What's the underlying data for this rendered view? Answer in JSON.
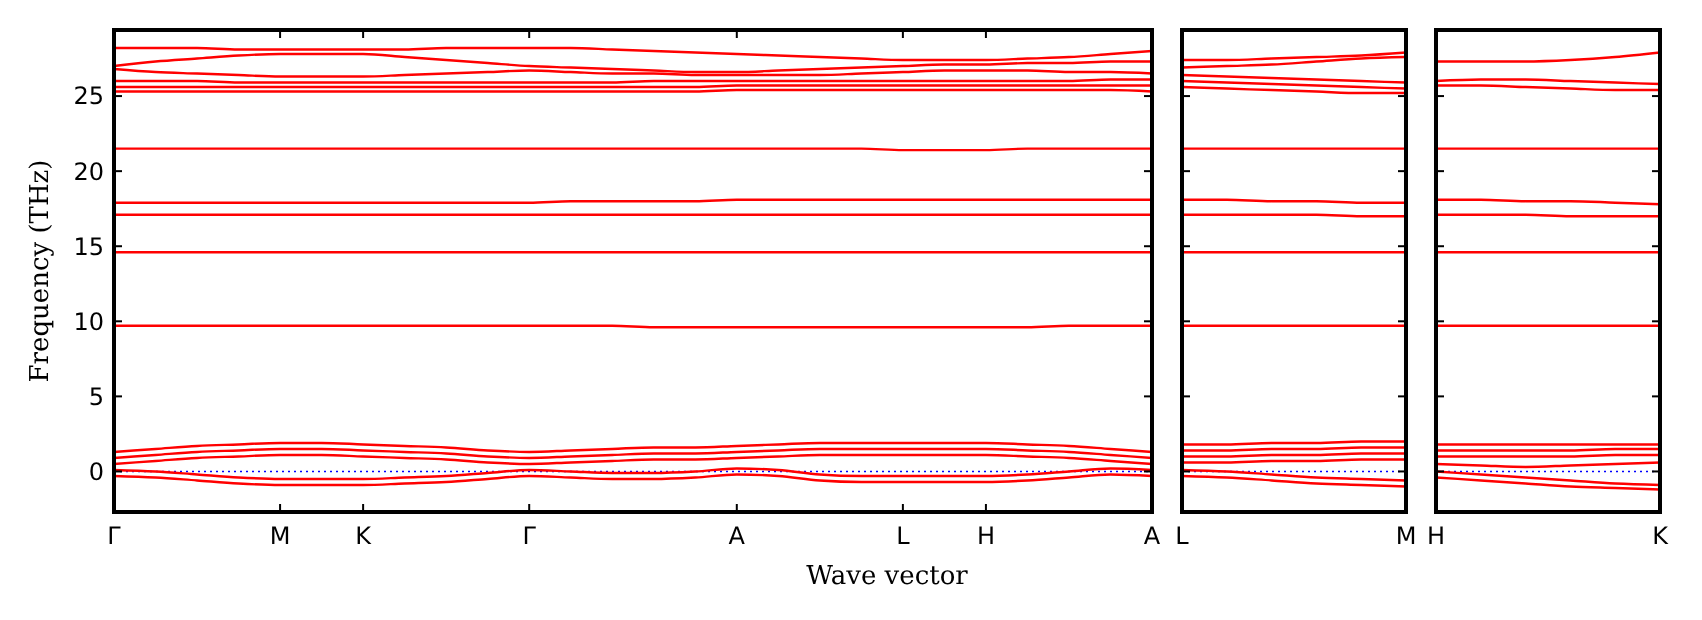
{
  "chart_data": [
    {
      "type": "line",
      "xlabel": "Wave vector",
      "ylabel": "Frequency (THz)",
      "categories": [
        "Γ",
        null,
        null,
        null,
        "M",
        null,
        "K",
        null,
        null,
        null,
        "Γ",
        null,
        null,
        null,
        null,
        "A",
        null,
        null,
        null,
        "L",
        null,
        "H",
        null,
        null,
        null,
        "A"
      ],
      "ylim": [
        -2.7,
        29.4
      ],
      "yticks": [
        0,
        5,
        10,
        15,
        20,
        25
      ],
      "ref_lines": [
        {
          "axis": "y",
          "value": 0,
          "color": "#0000ff",
          "line_style": "dotted"
        }
      ],
      "series": [
        {
          "color": "#ff0000",
          "values": [
            28.2,
            28.2,
            28.2,
            28.1,
            28.1,
            28.1,
            28.1,
            28.1,
            28.2,
            28.2,
            28.2,
            28.2,
            28.1,
            28.0,
            27.9,
            27.8,
            27.7,
            27.6,
            27.5,
            27.4,
            27.4,
            27.4,
            27.5,
            27.6,
            27.8,
            28.0
          ]
        },
        {
          "color": "#ff0000",
          "values": [
            27.0,
            27.3,
            27.5,
            27.7,
            27.8,
            27.8,
            27.8,
            27.6,
            27.4,
            27.2,
            27.0,
            26.9,
            26.8,
            26.7,
            26.6,
            26.6,
            26.7,
            26.8,
            26.9,
            27.0,
            27.1,
            27.1,
            27.2,
            27.2,
            27.3,
            27.3
          ]
        },
        {
          "color": "#ff0000",
          "values": [
            26.8,
            26.6,
            26.5,
            26.4,
            26.3,
            26.3,
            26.3,
            26.4,
            26.5,
            26.6,
            26.7,
            26.6,
            26.5,
            26.5,
            26.4,
            26.4,
            26.4,
            26.4,
            26.5,
            26.6,
            26.7,
            26.7,
            26.7,
            26.6,
            26.6,
            26.5
          ]
        },
        {
          "color": "#ff0000",
          "values": [
            26.0,
            26.0,
            26.0,
            25.9,
            25.9,
            25.9,
            25.9,
            25.9,
            25.9,
            25.9,
            25.9,
            25.9,
            25.9,
            26.0,
            26.0,
            26.0,
            26.0,
            26.0,
            26.0,
            26.0,
            26.0,
            26.0,
            26.0,
            26.0,
            26.1,
            26.1
          ]
        },
        {
          "color": "#ff0000",
          "values": [
            25.6,
            25.6,
            25.6,
            25.6,
            25.6,
            25.6,
            25.6,
            25.6,
            25.6,
            25.6,
            25.6,
            25.6,
            25.6,
            25.6,
            25.6,
            25.7,
            25.7,
            25.7,
            25.7,
            25.7,
            25.7,
            25.7,
            25.7,
            25.7,
            25.7,
            25.7
          ]
        },
        {
          "color": "#ff0000",
          "values": [
            25.3,
            25.3,
            25.3,
            25.3,
            25.3,
            25.3,
            25.3,
            25.3,
            25.3,
            25.3,
            25.3,
            25.3,
            25.3,
            25.3,
            25.3,
            25.4,
            25.4,
            25.4,
            25.4,
            25.4,
            25.4,
            25.4,
            25.4,
            25.4,
            25.4,
            25.3
          ]
        },
        {
          "color": "#ff0000",
          "values": [
            21.5,
            21.5,
            21.5,
            21.5,
            21.5,
            21.5,
            21.5,
            21.5,
            21.5,
            21.5,
            21.5,
            21.5,
            21.5,
            21.5,
            21.5,
            21.5,
            21.5,
            21.5,
            21.5,
            21.4,
            21.4,
            21.4,
            21.5,
            21.5,
            21.5,
            21.5
          ]
        },
        {
          "color": "#ff0000",
          "values": [
            17.9,
            17.9,
            17.9,
            17.9,
            17.9,
            17.9,
            17.9,
            17.9,
            17.9,
            17.9,
            17.9,
            18.0,
            18.0,
            18.0,
            18.0,
            18.1,
            18.1,
            18.1,
            18.1,
            18.1,
            18.1,
            18.1,
            18.1,
            18.1,
            18.1,
            18.1
          ]
        },
        {
          "color": "#ff0000",
          "values": [
            17.1,
            17.1,
            17.1,
            17.1,
            17.1,
            17.1,
            17.1,
            17.1,
            17.1,
            17.1,
            17.1,
            17.1,
            17.1,
            17.1,
            17.1,
            17.1,
            17.1,
            17.1,
            17.1,
            17.1,
            17.1,
            17.1,
            17.1,
            17.1,
            17.1,
            17.1
          ]
        },
        {
          "color": "#ff0000",
          "values": [
            14.6,
            14.6,
            14.6,
            14.6,
            14.6,
            14.6,
            14.6,
            14.6,
            14.6,
            14.6,
            14.6,
            14.6,
            14.6,
            14.6,
            14.6,
            14.6,
            14.6,
            14.6,
            14.6,
            14.6,
            14.6,
            14.6,
            14.6,
            14.6,
            14.6,
            14.6
          ]
        },
        {
          "color": "#ff0000",
          "values": [
            9.7,
            9.7,
            9.7,
            9.7,
            9.7,
            9.7,
            9.7,
            9.7,
            9.7,
            9.7,
            9.7,
            9.7,
            9.7,
            9.6,
            9.6,
            9.6,
            9.6,
            9.6,
            9.6,
            9.6,
            9.6,
            9.6,
            9.6,
            9.7,
            9.7,
            9.7
          ]
        },
        {
          "color": "#ff0000",
          "values": [
            1.3,
            1.5,
            1.7,
            1.8,
            1.9,
            1.9,
            1.8,
            1.7,
            1.6,
            1.4,
            1.3,
            1.4,
            1.5,
            1.6,
            1.6,
            1.7,
            1.8,
            1.9,
            1.9,
            1.9,
            1.9,
            1.9,
            1.8,
            1.7,
            1.5,
            1.3
          ]
        },
        {
          "color": "#ff0000",
          "values": [
            0.9,
            1.1,
            1.3,
            1.4,
            1.5,
            1.5,
            1.4,
            1.3,
            1.2,
            1.0,
            0.9,
            1.0,
            1.1,
            1.2,
            1.2,
            1.3,
            1.4,
            1.5,
            1.5,
            1.5,
            1.5,
            1.5,
            1.4,
            1.3,
            1.1,
            0.9
          ]
        },
        {
          "color": "#ff0000",
          "values": [
            0.5,
            0.7,
            0.9,
            1.0,
            1.1,
            1.1,
            1.0,
            0.9,
            0.8,
            0.6,
            0.5,
            0.6,
            0.7,
            0.8,
            0.8,
            0.9,
            1.0,
            1.1,
            1.1,
            1.1,
            1.1,
            1.1,
            1.0,
            0.9,
            0.7,
            0.5
          ]
        },
        {
          "color": "#ff0000",
          "values": [
            0.1,
            0.0,
            -0.2,
            -0.4,
            -0.5,
            -0.5,
            -0.5,
            -0.4,
            -0.3,
            -0.1,
            0.1,
            0.0,
            -0.1,
            -0.1,
            0.0,
            0.2,
            0.1,
            -0.2,
            -0.3,
            -0.3,
            -0.3,
            -0.3,
            -0.2,
            0.0,
            0.2,
            0.1
          ]
        },
        {
          "color": "#ff0000",
          "values": [
            -0.3,
            -0.4,
            -0.6,
            -0.8,
            -0.9,
            -0.9,
            -0.9,
            -0.8,
            -0.7,
            -0.5,
            -0.3,
            -0.4,
            -0.5,
            -0.5,
            -0.4,
            -0.2,
            -0.3,
            -0.6,
            -0.7,
            -0.7,
            -0.7,
            -0.7,
            -0.6,
            -0.4,
            -0.2,
            -0.3
          ]
        }
      ]
    },
    {
      "type": "line",
      "tick_labels": "x",
      "categories": [
        "L",
        null,
        null,
        null,
        null,
        "M"
      ],
      "ylim": [
        -2.7,
        29.4
      ],
      "yticks": [
        0,
        5,
        10,
        15,
        20,
        25
      ],
      "ref_lines": [
        {
          "axis": "y",
          "value": 0,
          "color": "#0000ff",
          "line_style": "dotted"
        }
      ],
      "series": [
        {
          "color": "#ff0000",
          "values": [
            27.4,
            27.4,
            27.5,
            27.6,
            27.7,
            27.9
          ]
        },
        {
          "color": "#ff0000",
          "values": [
            26.9,
            27.0,
            27.1,
            27.3,
            27.5,
            27.6
          ]
        },
        {
          "color": "#ff0000",
          "values": [
            26.4,
            26.3,
            26.2,
            26.1,
            26.0,
            25.9
          ]
        },
        {
          "color": "#ff0000",
          "values": [
            26.0,
            25.9,
            25.8,
            25.7,
            25.6,
            25.5
          ]
        },
        {
          "color": "#ff0000",
          "values": [
            25.6,
            25.5,
            25.4,
            25.3,
            25.2,
            25.2
          ]
        },
        {
          "color": "#ff0000",
          "values": [
            21.5,
            21.5,
            21.5,
            21.5,
            21.5,
            21.5
          ]
        },
        {
          "color": "#ff0000",
          "values": [
            18.1,
            18.1,
            18.0,
            18.0,
            17.9,
            17.9
          ]
        },
        {
          "color": "#ff0000",
          "values": [
            17.1,
            17.1,
            17.1,
            17.1,
            17.0,
            17.0
          ]
        },
        {
          "color": "#ff0000",
          "values": [
            14.6,
            14.6,
            14.6,
            14.6,
            14.6,
            14.6
          ]
        },
        {
          "color": "#ff0000",
          "values": [
            9.7,
            9.7,
            9.7,
            9.7,
            9.7,
            9.7
          ]
        },
        {
          "color": "#ff0000",
          "values": [
            1.8,
            1.8,
            1.9,
            1.9,
            2.0,
            2.0
          ]
        },
        {
          "color": "#ff0000",
          "values": [
            1.4,
            1.4,
            1.5,
            1.5,
            1.6,
            1.6
          ]
        },
        {
          "color": "#ff0000",
          "values": [
            1.0,
            1.0,
            1.1,
            1.1,
            1.2,
            1.2
          ]
        },
        {
          "color": "#ff0000",
          "values": [
            0.6,
            0.6,
            0.7,
            0.7,
            0.8,
            0.8
          ]
        },
        {
          "color": "#ff0000",
          "values": [
            0.1,
            0.0,
            -0.2,
            -0.4,
            -0.5,
            -0.6
          ]
        },
        {
          "color": "#ff0000",
          "values": [
            -0.3,
            -0.4,
            -0.6,
            -0.8,
            -0.9,
            -1.0
          ]
        }
      ]
    },
    {
      "type": "line",
      "tick_labels": "x",
      "categories": [
        "H",
        null,
        null,
        null,
        null,
        "K"
      ],
      "ylim": [
        -2.7,
        29.4
      ],
      "yticks": [
        0,
        5,
        10,
        15,
        20,
        25
      ],
      "ref_lines": [
        {
          "axis": "y",
          "value": 0,
          "color": "#0000ff",
          "line_style": "dotted"
        }
      ],
      "series": [
        {
          "color": "#ff0000",
          "values": [
            27.3,
            27.3,
            27.3,
            27.4,
            27.6,
            27.9
          ]
        },
        {
          "color": "#ff0000",
          "values": [
            26.0,
            26.1,
            26.1,
            26.0,
            25.9,
            25.8
          ]
        },
        {
          "color": "#ff0000",
          "values": [
            25.7,
            25.7,
            25.6,
            25.5,
            25.4,
            25.4
          ]
        },
        {
          "color": "#ff0000",
          "values": [
            21.5,
            21.5,
            21.5,
            21.5,
            21.5,
            21.5
          ]
        },
        {
          "color": "#ff0000",
          "values": [
            18.1,
            18.1,
            18.0,
            18.0,
            17.9,
            17.8
          ]
        },
        {
          "color": "#ff0000",
          "values": [
            17.1,
            17.1,
            17.1,
            17.0,
            17.0,
            17.0
          ]
        },
        {
          "color": "#ff0000",
          "values": [
            14.6,
            14.6,
            14.6,
            14.6,
            14.6,
            14.6
          ]
        },
        {
          "color": "#ff0000",
          "values": [
            9.7,
            9.7,
            9.7,
            9.7,
            9.7,
            9.7
          ]
        },
        {
          "color": "#ff0000",
          "values": [
            1.8,
            1.8,
            1.8,
            1.8,
            1.8,
            1.8
          ]
        },
        {
          "color": "#ff0000",
          "values": [
            1.4,
            1.4,
            1.4,
            1.4,
            1.5,
            1.5
          ]
        },
        {
          "color": "#ff0000",
          "values": [
            1.0,
            1.0,
            1.0,
            1.0,
            1.1,
            1.1
          ]
        },
        {
          "color": "#ff0000",
          "values": [
            0.5,
            0.4,
            0.3,
            0.4,
            0.5,
            0.6
          ]
        },
        {
          "color": "#ff0000",
          "values": [
            0.0,
            -0.2,
            -0.4,
            -0.6,
            -0.8,
            -0.9
          ]
        },
        {
          "color": "#ff0000",
          "values": [
            -0.4,
            -0.6,
            -0.8,
            -1.0,
            -1.1,
            -1.2
          ]
        }
      ]
    }
  ]
}
